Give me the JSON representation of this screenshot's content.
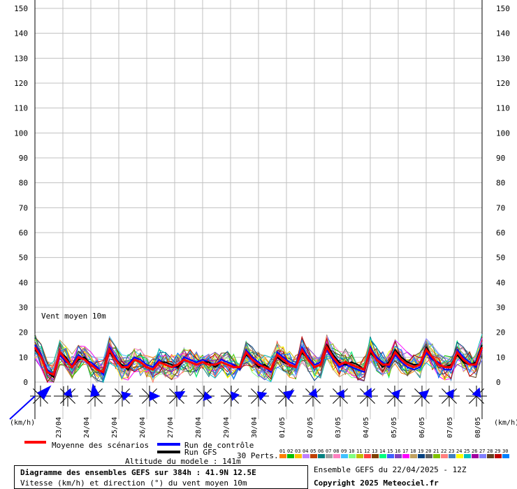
{
  "chart_data": {
    "type": "line",
    "y_label": "km/h",
    "ylim": [
      0,
      150
    ],
    "y_ticks": [
      0,
      10,
      20,
      30,
      40,
      50,
      60,
      70,
      80,
      90,
      100,
      110,
      120,
      130,
      140,
      150
    ],
    "x_range_days": [
      0,
      16
    ],
    "date_labels": [
      "23/04",
      "24/04",
      "25/04",
      "26/04",
      "27/04",
      "28/04",
      "29/04",
      "30/04",
      "01/05",
      "02/05",
      "03/05",
      "04/05",
      "05/05",
      "06/05",
      "07/05",
      "08/05"
    ],
    "grid": true,
    "inner_label": "Vent moyen 10m",
    "mean_series": {
      "name": "Moyenne des scénarios",
      "color": "#ff0000",
      "values": [
        14,
        10,
        4,
        3,
        12,
        9,
        6,
        10,
        9,
        7,
        5,
        4,
        13,
        9,
        6,
        6,
        9,
        8,
        6,
        5,
        8,
        7,
        6,
        7,
        9,
        8,
        7,
        8,
        7,
        7,
        8,
        7,
        6,
        6,
        12,
        9,
        7,
        6,
        5,
        11,
        9,
        7,
        6,
        13,
        9,
        6,
        7,
        14,
        10,
        7,
        8,
        7,
        6,
        5,
        13,
        9,
        7,
        7,
        12,
        9,
        7,
        6,
        7,
        13,
        10,
        7,
        6,
        6,
        12,
        9,
        7,
        7,
        14
      ]
    },
    "control_series": {
      "name": "Run de contrôle",
      "color": "#0000ff",
      "values": [
        15,
        11,
        5,
        3,
        11,
        8,
        7,
        11,
        9,
        8,
        6,
        3,
        14,
        10,
        6,
        7,
        10,
        9,
        7,
        6,
        9,
        7,
        6,
        6,
        10,
        9,
        8,
        9,
        8,
        7,
        9,
        8,
        7,
        5,
        13,
        10,
        8,
        6,
        4,
        12,
        10,
        8,
        7,
        14,
        10,
        7,
        8,
        13,
        9,
        6,
        7,
        6,
        5,
        4,
        14,
        10,
        8,
        6,
        11,
        8,
        6,
        5,
        6,
        12,
        9,
        8,
        5,
        5,
        13,
        10,
        8,
        6,
        13
      ]
    },
    "gfs_series": {
      "name": "Run GFS",
      "color": "#000000",
      "values": [
        13,
        10,
        4,
        2,
        12,
        10,
        6,
        9,
        10,
        7,
        5,
        4,
        12,
        9,
        7,
        5,
        9,
        8,
        6,
        5,
        8,
        8,
        7,
        6,
        9,
        8,
        7,
        8,
        8,
        6,
        8,
        7,
        6,
        6,
        11,
        9,
        6,
        7,
        5,
        10,
        8,
        7,
        6,
        12,
        9,
        6,
        7,
        15,
        11,
        8,
        7,
        8,
        7,
        5,
        12,
        9,
        6,
        8,
        13,
        10,
        8,
        7,
        7,
        14,
        10,
        7,
        6,
        7,
        11,
        8,
        7,
        8,
        15
      ]
    },
    "ensemble_count": 30,
    "ensemble_label": "30 Perts.",
    "ensemble_names": [
      "01",
      "02",
      "03",
      "04",
      "05",
      "06",
      "07",
      "08",
      "09",
      "10",
      "11",
      "12",
      "13",
      "14",
      "15",
      "16",
      "17",
      "18",
      "19",
      "20",
      "21",
      "22",
      "23",
      "24",
      "25",
      "26",
      "27",
      "28",
      "29",
      "30"
    ],
    "ensemble_colors": [
      "#ff8000",
      "#00c000",
      "#ffc000",
      "#c080ff",
      "#c04000",
      "#008080",
      "#a0a0a0",
      "#ff80c0",
      "#40c0ff",
      "#80ff80",
      "#c0c000",
      "#ff4040",
      "#804000",
      "#00ff80",
      "#4060ff",
      "#8040c0",
      "#ff00ff",
      "#c0a060",
      "#004080",
      "#606060",
      "#80c000",
      "#ff8080",
      "#4080c0",
      "#ffff00",
      "#00c0c0",
      "#a000a0",
      "#8080ff",
      "#604020",
      "#c00000",
      "#0080ff"
    ],
    "roses": [
      {
        "dir": 225,
        "len": 1.0
      },
      {
        "dir": 200,
        "len": 0.55
      },
      {
        "dir": 170,
        "len": 0.85
      },
      {
        "dir": 255,
        "len": 0.6
      },
      {
        "dir": 270,
        "len": 0.7
      },
      {
        "dir": 240,
        "len": 0.65
      },
      {
        "dir": 280,
        "len": 0.55
      },
      {
        "dir": 260,
        "len": 0.55
      },
      {
        "dir": 250,
        "len": 0.6
      },
      {
        "dir": 235,
        "len": 0.7
      },
      {
        "dir": 200,
        "len": 0.55
      },
      {
        "dir": 210,
        "len": 0.5
      },
      {
        "dir": 205,
        "len": 0.6
      },
      {
        "dir": 220,
        "len": 0.55
      },
      {
        "dir": 230,
        "len": 0.6
      },
      {
        "dir": 215,
        "len": 0.55
      },
      {
        "dir": 200,
        "len": 0.6
      }
    ]
  },
  "axis": {
    "left_unit": "(km/h)",
    "right_unit": "(km/h)"
  },
  "legend": {
    "mean": "Moyenne des scénarios",
    "control": "Run de contrôle",
    "gfs": "Run GFS",
    "perts": "30 Perts.",
    "altitude": "Altitude du modele : 141m"
  },
  "footer": {
    "title": "Diagramme des ensembles GEFS sur 384h : 41.9N 12.5E",
    "subtitle": "Vitesse (km/h) et direction (°) du vent moyen 10m",
    "run": "Ensemble GEFS du 22/04/2025 - 12Z",
    "copyright": "Copyright 2025 Meteociel.fr"
  }
}
